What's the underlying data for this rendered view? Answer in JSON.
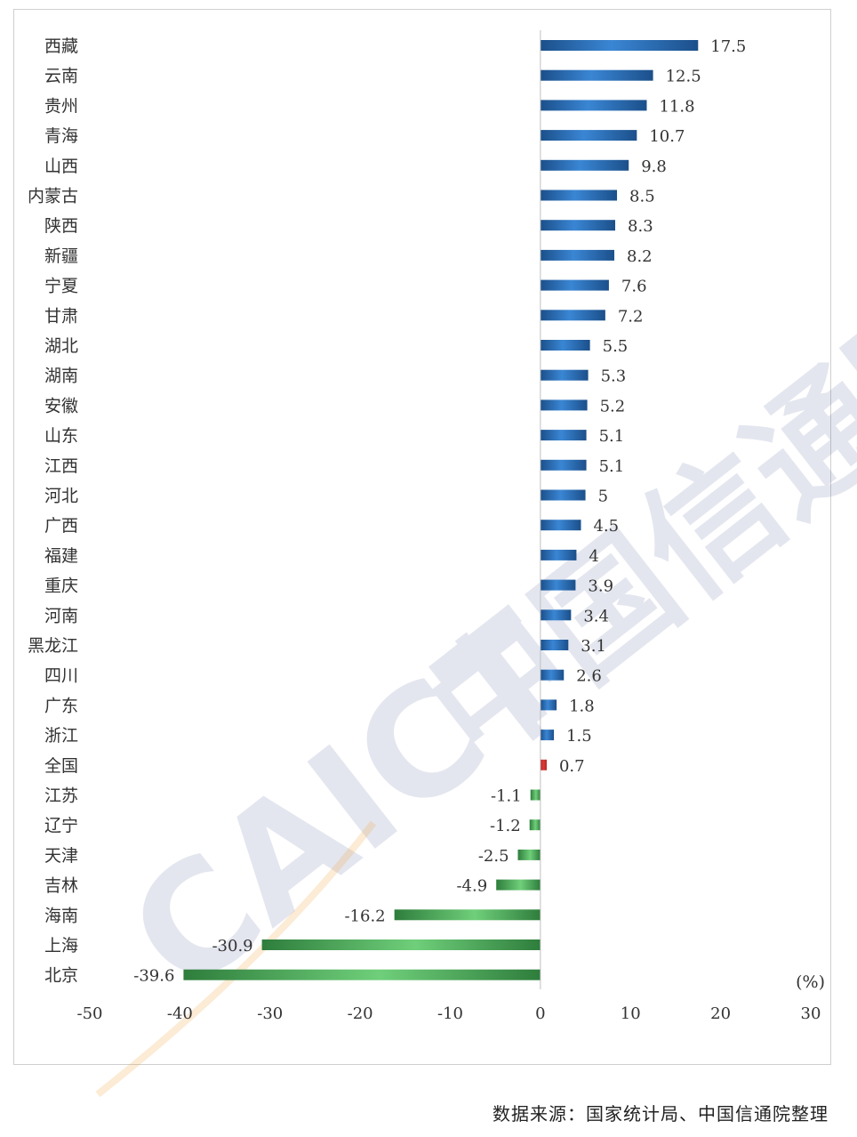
{
  "watermark": {
    "logo_latin": "CAICT",
    "logo_cn": "中国信通院"
  },
  "source": "数据来源：国家统计局、中国信通院整理",
  "colors": {
    "positive_dark": "#1b4f8a",
    "positive_light": "#3a86d4",
    "national": "#e03a3a",
    "negative_dark": "#2e7d3c",
    "negative_light": "#6fcf7a",
    "axis": "#bfbfbf",
    "text": "#333333"
  },
  "chart_data": {
    "type": "bar",
    "orientation": "horizontal",
    "title": "",
    "xlabel": "",
    "ylabel": "",
    "unit_label": "(%)",
    "xlim": [
      -50,
      30
    ],
    "xticks": [
      -50,
      -40,
      -30,
      -20,
      -10,
      0,
      10,
      20,
      30
    ],
    "grid": false,
    "highlight": "全国",
    "categories": [
      "西藏",
      "云南",
      "贵州",
      "青海",
      "山西",
      "内蒙古",
      "陕西",
      "新疆",
      "宁夏",
      "甘肃",
      "湖北",
      "湖南",
      "安徽",
      "山东",
      "江西",
      "河北",
      "广西",
      "福建",
      "重庆",
      "河南",
      "黑龙江",
      "四川",
      "广东",
      "浙江",
      "全国",
      "江苏",
      "辽宁",
      "天津",
      "吉林",
      "海南",
      "上海",
      "北京"
    ],
    "values": [
      17.5,
      12.5,
      11.8,
      10.7,
      9.8,
      8.5,
      8.3,
      8.2,
      7.6,
      7.2,
      5.5,
      5.3,
      5.2,
      5.1,
      5.1,
      5,
      4.5,
      4,
      3.9,
      3.4,
      3.1,
      2.6,
      1.8,
      1.5,
      0.7,
      -1.1,
      -1.2,
      -2.5,
      -4.9,
      -16.2,
      -30.9,
      -39.6
    ],
    "value_labels": [
      "17.5",
      "12.5",
      "11.8",
      "10.7",
      "9.8",
      "8.5",
      "8.3",
      "8.2",
      "7.6",
      "7.2",
      "5.5",
      "5.3",
      "5.2",
      "5.1",
      "5.1",
      "5",
      "4.5",
      "4",
      "3.9",
      "3.4",
      "3.1",
      "2.6",
      "1.8",
      "1.5",
      "0.7",
      "-1.1",
      "-1.2",
      "-2.5",
      "-4.9",
      "-16.2",
      "-30.9",
      "-39.6"
    ]
  }
}
